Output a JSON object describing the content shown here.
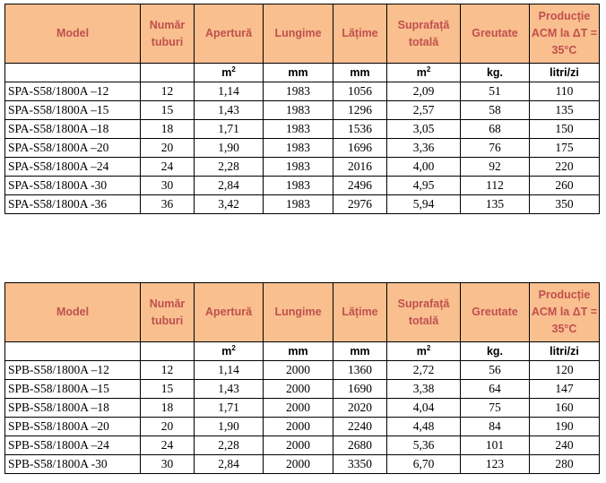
{
  "header": {
    "model": "Model",
    "tubes": "Număr tuburi",
    "aperture": "Apertură",
    "length": "Lungime",
    "width": "Lățime",
    "area": "Suprafață totală",
    "weight": "Greutate",
    "production": "Producție ACM la ΔT = 35°C"
  },
  "units": {
    "model": "",
    "tubes": "",
    "aperture_base": "m",
    "aperture_exp": "2",
    "length": "mm",
    "width": "mm",
    "area_base": "m",
    "area_exp": "2",
    "weight": "kg.",
    "production": "litri/zi"
  },
  "table_a": {
    "rows": [
      [
        "SPA-S58/1800A –12",
        "12",
        "1,14",
        "1983",
        "1056",
        "2,09",
        "51",
        "110"
      ],
      [
        "SPA-S58/1800A –15",
        "15",
        "1,43",
        "1983",
        "1296",
        "2,57",
        "58",
        "135"
      ],
      [
        "SPA-S58/1800A –18",
        "18",
        "1,71",
        "1983",
        "1536",
        "3,05",
        "68",
        "150"
      ],
      [
        "SPA-S58/1800A –20",
        "20",
        "1,90",
        "1983",
        "1696",
        "3,36",
        "76",
        "175"
      ],
      [
        "SPA-S58/1800A –24",
        "24",
        "2,28",
        "1983",
        "2016",
        "4,00",
        "92",
        "220"
      ],
      [
        "SPA-S58/1800A -30",
        "30",
        "2,84",
        "1983",
        "2496",
        "4,95",
        "112",
        "260"
      ],
      [
        "SPA-S58/1800A -36",
        "36",
        "3,42",
        "1983",
        "2976",
        "5,94",
        "135",
        "350"
      ]
    ]
  },
  "table_b": {
    "rows": [
      [
        "SPB-S58/1800A –12",
        "12",
        "1,14",
        "2000",
        "1360",
        "2,72",
        "56",
        "120"
      ],
      [
        "SPB-S58/1800A –15",
        "15",
        "1,43",
        "2000",
        "1690",
        "3,38",
        "64",
        "147"
      ],
      [
        "SPB-S58/1800A –18",
        "18",
        "1,71",
        "2000",
        "2020",
        "4,04",
        "75",
        "160"
      ],
      [
        "SPB-S58/1800A –20",
        "20",
        "1,90",
        "2000",
        "2240",
        "4,48",
        "84",
        "190"
      ],
      [
        "SPB-S58/1800A –24",
        "24",
        "2,28",
        "2000",
        "2680",
        "5,36",
        "101",
        "240"
      ],
      [
        "SPB-S58/1800A -30",
        "30",
        "2,84",
        "2000",
        "3350",
        "6,70",
        "123",
        "280"
      ]
    ]
  },
  "colors": {
    "header_bg": "#F9BF8F",
    "header_text": "#C0504D",
    "border": "#000000"
  }
}
